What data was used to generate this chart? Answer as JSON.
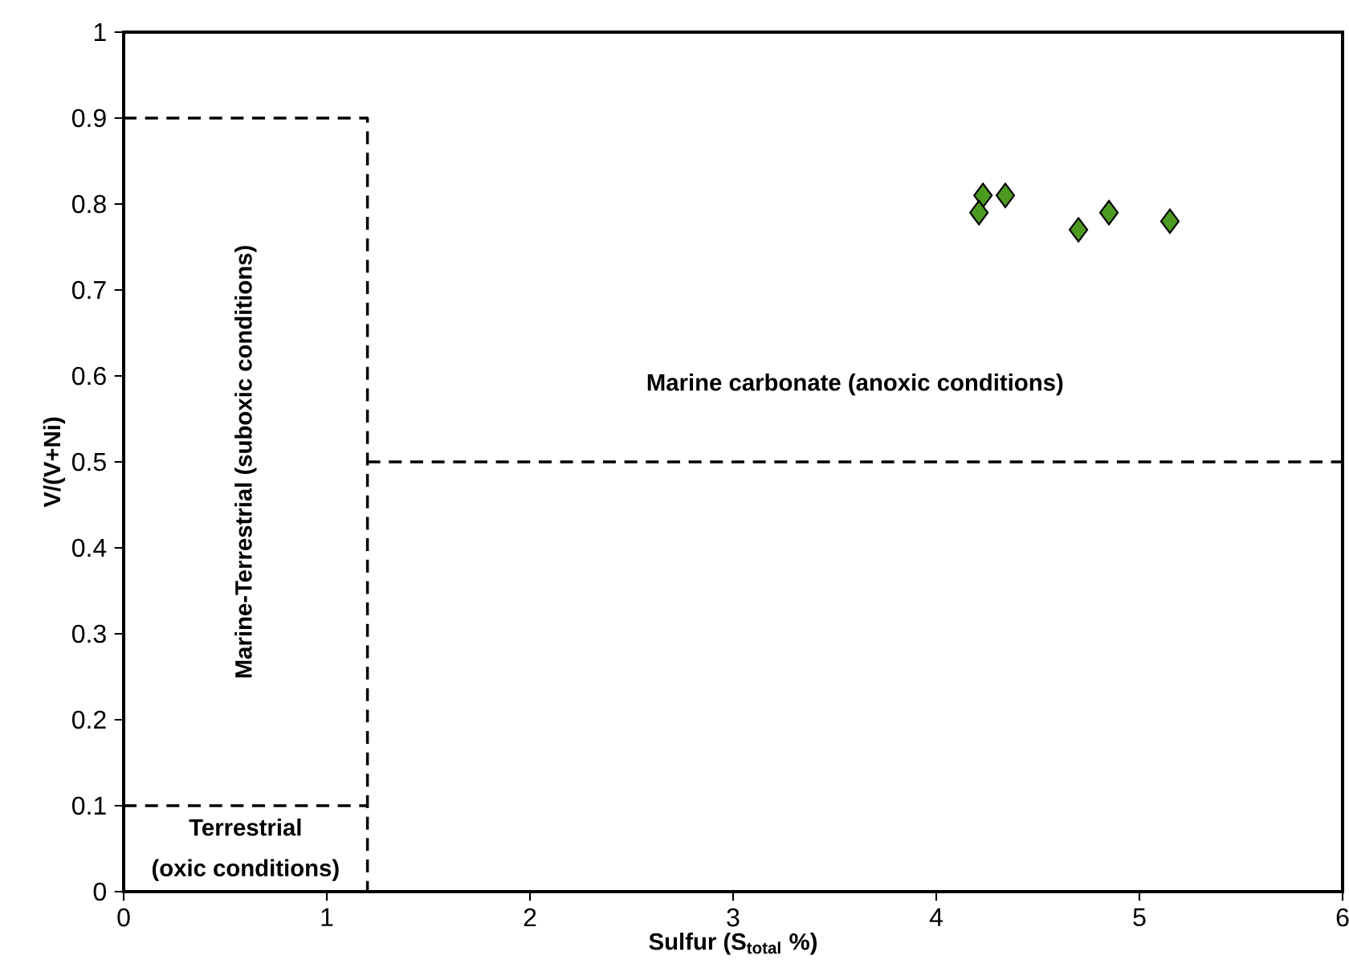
{
  "chart_data": {
    "type": "scatter",
    "xlabel": "Sulfur (S$_{total}$ %)",
    "ylabel": "V/(V+Ni)",
    "xlim": [
      0,
      6
    ],
    "ylim": [
      0,
      1
    ],
    "xticks": [
      0,
      1,
      2,
      3,
      4,
      5,
      6
    ],
    "yticks": [
      0,
      0.1,
      0.2,
      0.3,
      0.4,
      0.5,
      0.6,
      0.7,
      0.8,
      0.9,
      1
    ],
    "marker": "diamond",
    "series": [
      {
        "color": "#4d9a20",
        "x": [
          4.23,
          4.21,
          4.34,
          4.7,
          4.85,
          5.15
        ],
        "values": [
          0.81,
          0.79,
          0.81,
          0.77,
          0.79,
          0.78
        ]
      },
      {
        "type": "line",
        "color": "#000000",
        "line_style": "dashed",
        "marker": "none",
        "x": [
          0,
          1.2,
          1.2
        ],
        "values": [
          0.9,
          0.9,
          0
        ]
      },
      {
        "type": "line",
        "color": "#000000",
        "line_style": "dashed",
        "marker": "none",
        "x": [
          0,
          1.2
        ],
        "values": [
          0.1,
          0.1
        ]
      },
      {
        "type": "line",
        "color": "#000000",
        "line_style": "dashed",
        "marker": "none",
        "x": [
          1.2,
          6
        ],
        "values": [
          0.5,
          0.5
        ]
      }
    ],
    "annotations": [
      "Marine carbonate (anoxic conditions)",
      "Marine-Terrestrial (suboxic conditions)",
      "Terrestrial",
      "(oxic conditions)"
    ]
  }
}
